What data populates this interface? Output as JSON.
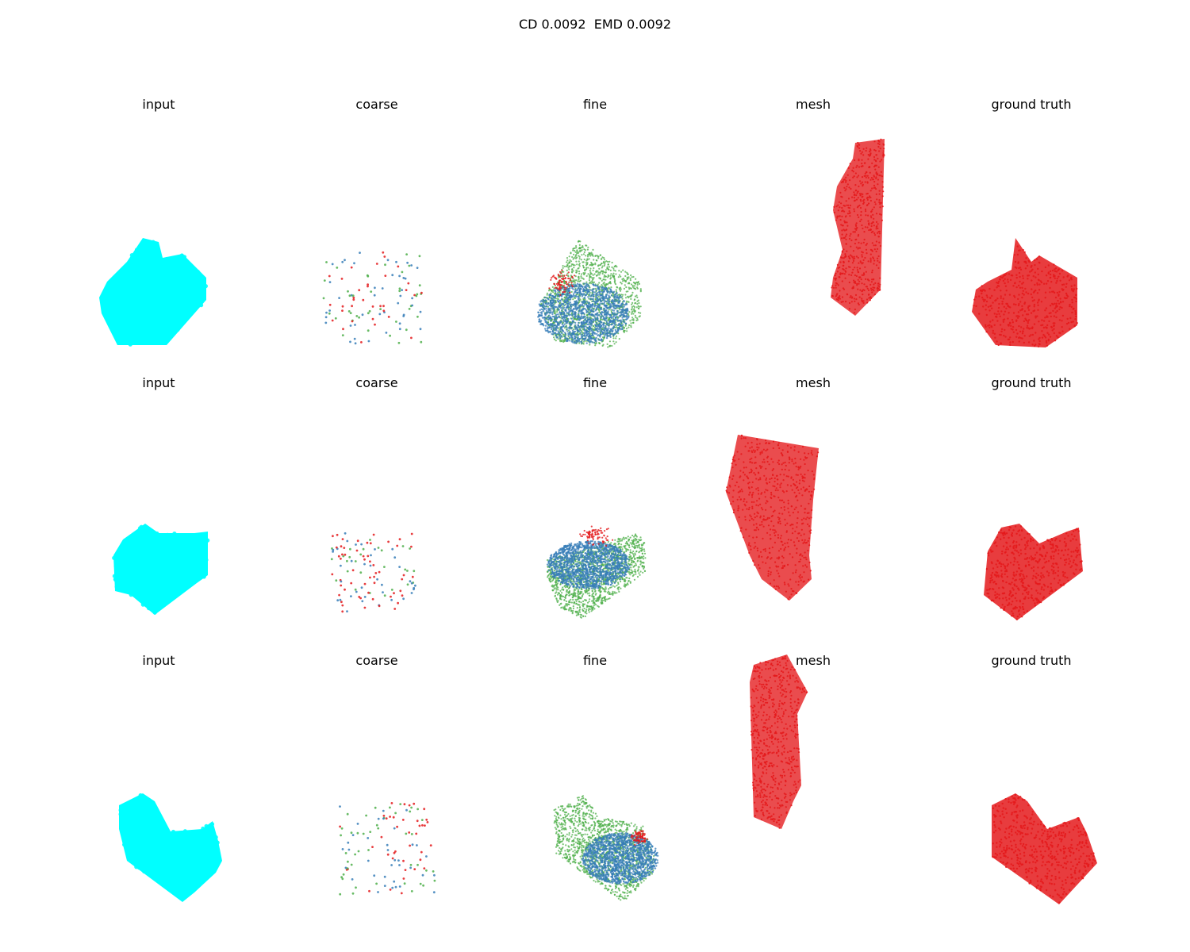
{
  "figure": {
    "suptitle": "CD 0.0092  EMD 0.0092"
  },
  "chart_data": {
    "type": "scatter",
    "grid": false,
    "axes_visible": false,
    "colors": {
      "input": "#00ffff",
      "coarse_fine_a": "#e41a1c",
      "coarse_fine_b": "#4daf4a",
      "coarse_fine_c": "#377eb8",
      "mesh": "#e41a1c",
      "ground_truth": "#e41a1c"
    },
    "rows": [
      {
        "panels": [
          "input",
          "coarse",
          "fine",
          "mesh",
          "ground truth"
        ]
      },
      {
        "panels": [
          "input",
          "coarse",
          "fine",
          "mesh",
          "ground truth"
        ]
      },
      {
        "panels": [
          "input",
          "coarse",
          "fine",
          "mesh",
          "ground truth"
        ]
      }
    ]
  }
}
